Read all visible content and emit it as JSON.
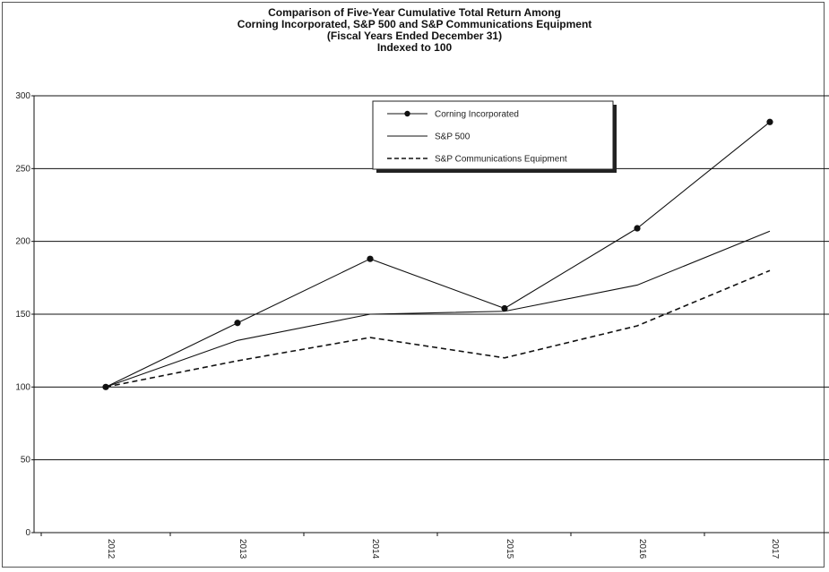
{
  "chart_data": {
    "type": "line",
    "title_lines": [
      "Comparison of Five-Year Cumulative Total Return Among",
      "Corning Incorporated, S&P 500 and S&P Communications Equipment",
      "(Fiscal Years Ended December 31)",
      "Indexed to 100"
    ],
    "categories": [
      "2012",
      "2013",
      "2014",
      "2015",
      "2016",
      "2017"
    ],
    "ylim": [
      0,
      300
    ],
    "yticks": [
      0,
      50,
      100,
      150,
      200,
      250,
      300
    ],
    "grid": true,
    "legend_placement": "top-center",
    "series": [
      {
        "name": "Corning Incorporated",
        "values": [
          100,
          144,
          188,
          154,
          209,
          282
        ],
        "style": "solid-markers",
        "color": "#111111"
      },
      {
        "name": "S&P 500",
        "values": [
          100,
          132,
          150,
          152,
          170,
          207
        ],
        "style": "solid",
        "color": "#111111"
      },
      {
        "name": "S&P Communications Equipment",
        "values": [
          100,
          118,
          134,
          120,
          142,
          180
        ],
        "style": "dashed",
        "color": "#111111"
      }
    ]
  }
}
